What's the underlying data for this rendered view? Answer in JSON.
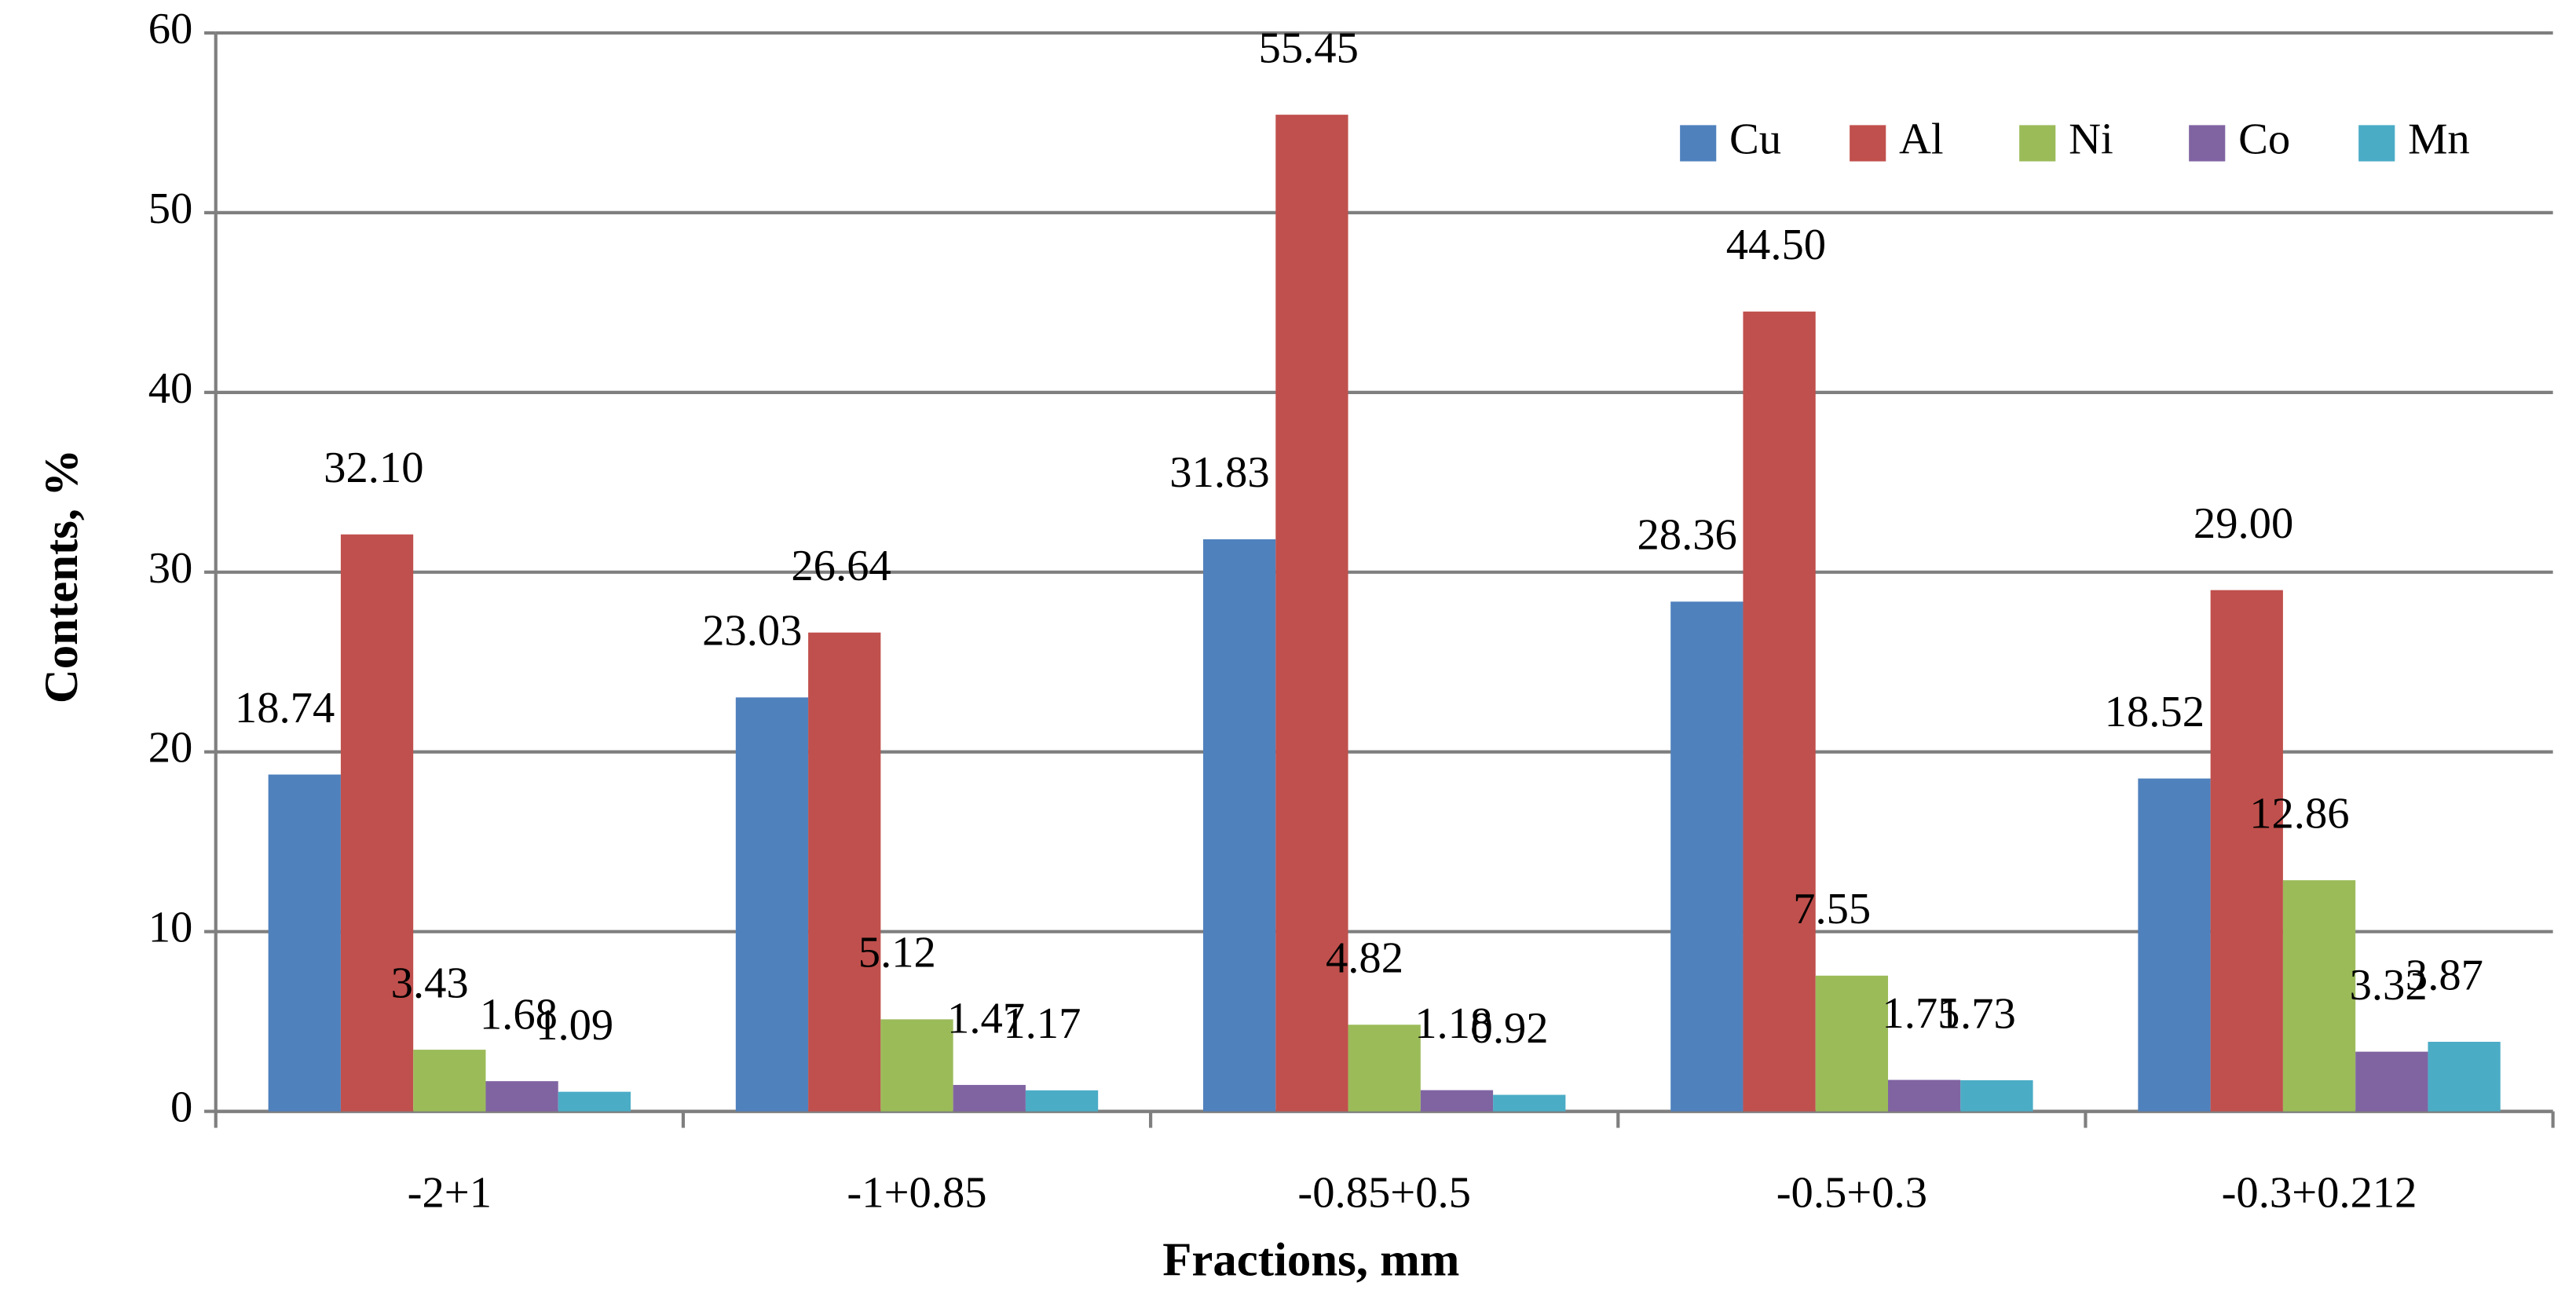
{
  "chart_data": {
    "type": "bar",
    "x_label": "Fractions, mm",
    "y_label": "Contents, %",
    "categories": [
      "-2+1",
      "-1+0.85",
      "-0.85+0.5",
      "-0.5+0.3",
      "-0.3+0.212"
    ],
    "series": [
      {
        "name": "Cu",
        "color": "#4f81bd",
        "values": [
          18.74,
          23.03,
          31.83,
          28.36,
          18.52
        ],
        "value_labels": [
          "18.74",
          "23.03",
          "31.83",
          "28.36",
          "18.52"
        ]
      },
      {
        "name": "Al",
        "color": "#c0504d",
        "values": [
          32.1,
          26.64,
          55.45,
          44.5,
          29.0
        ],
        "value_labels": [
          "32.10",
          "26.64",
          "55.45",
          "44.50",
          "29.00"
        ]
      },
      {
        "name": "Ni",
        "color": "#9bbb59",
        "values": [
          3.43,
          5.12,
          4.82,
          7.55,
          12.86
        ],
        "value_labels": [
          "3.43",
          "5.12",
          "4.82",
          "7.55",
          "12.86"
        ]
      },
      {
        "name": "Co",
        "color": "#8064a2",
        "values": [
          1.68,
          1.47,
          1.18,
          1.75,
          3.32
        ],
        "value_labels": [
          "1.68",
          "1.47",
          "1.18",
          "1.75",
          "3.32"
        ]
      },
      {
        "name": "Mn",
        "color": "#4bacc6",
        "values": [
          1.09,
          1.17,
          0.92,
          1.73,
          3.87
        ],
        "value_labels": [
          "1.09",
          "1.17",
          "0.92",
          "1.73",
          "3.87"
        ]
      }
    ],
    "ylim": [
      0,
      60
    ],
    "yticks": [
      0,
      10,
      20,
      30,
      40,
      50,
      60
    ],
    "grid": true,
    "legend": "top-right"
  }
}
